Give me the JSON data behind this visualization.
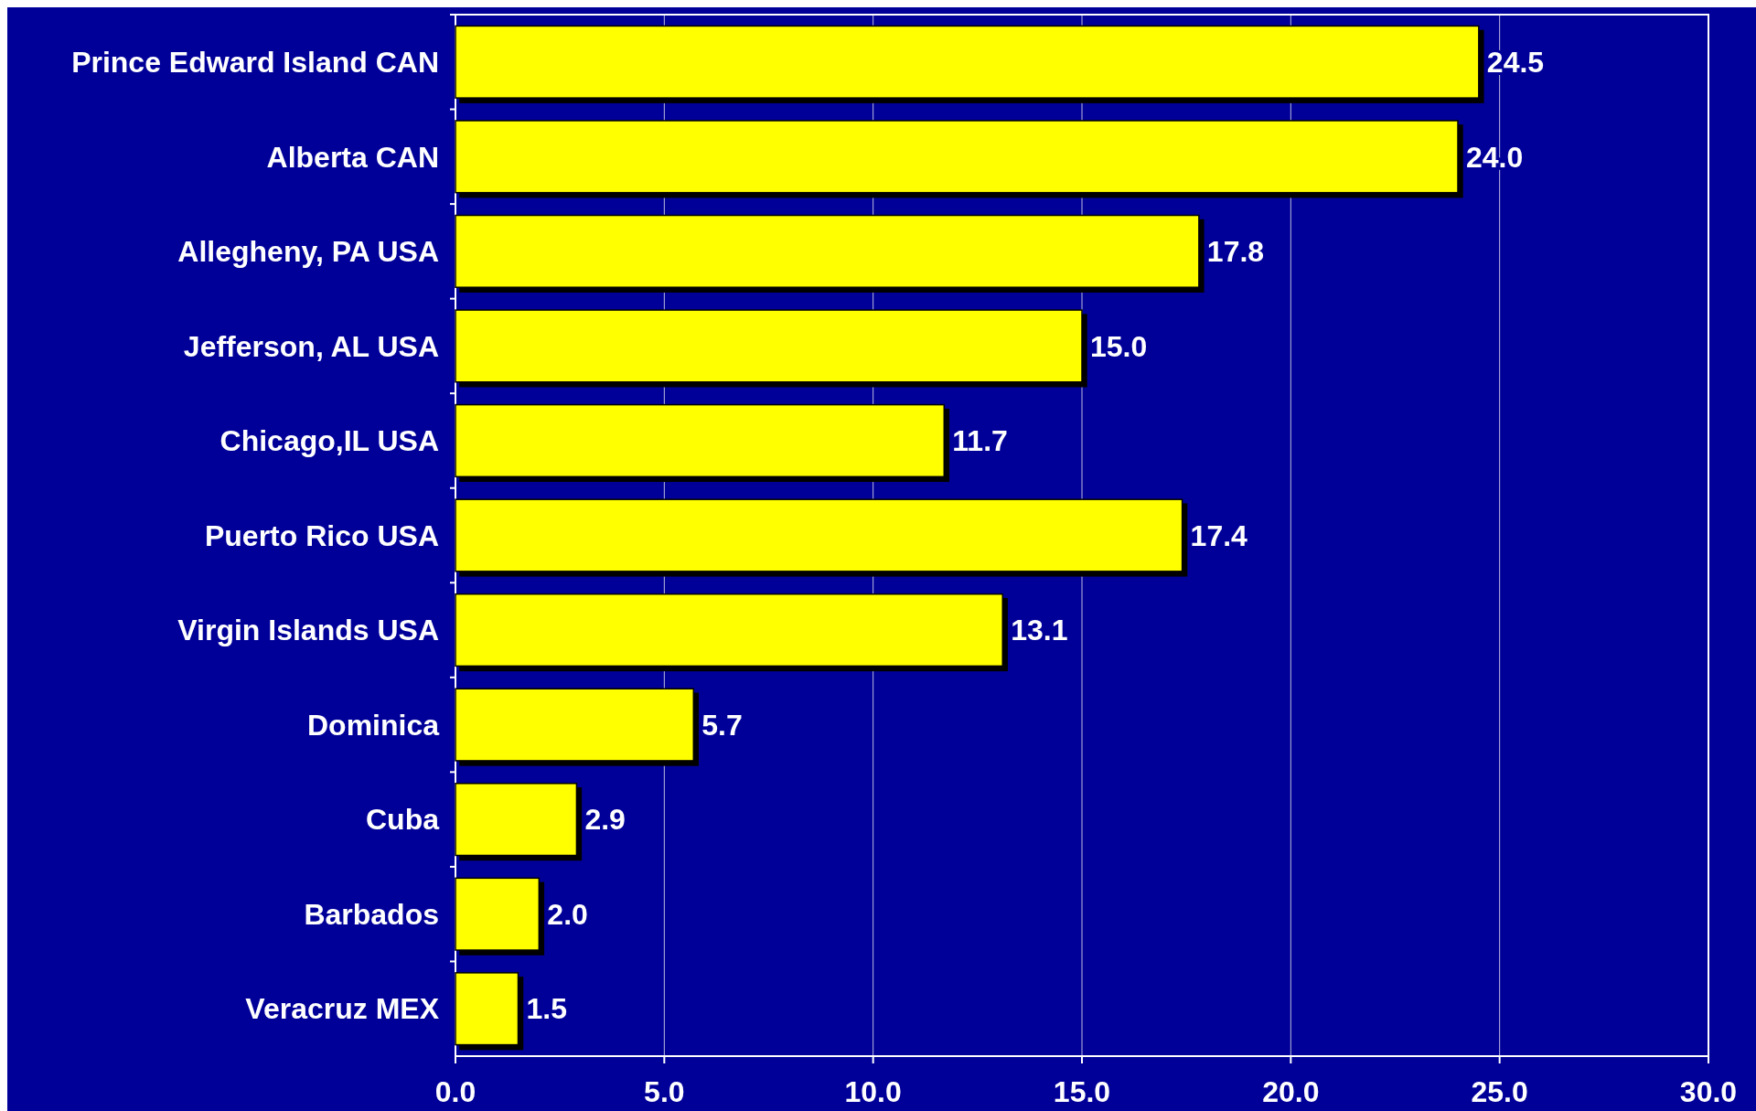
{
  "chart_data": {
    "type": "bar",
    "orientation": "horizontal",
    "categories": [
      "Prince Edward Island CAN",
      "Alberta CAN",
      "Allegheny, PA USA",
      "Jefferson, AL USA",
      "Chicago,IL USA",
      "Puerto Rico USA",
      "Virgin Islands USA",
      "Dominica",
      "Cuba",
      "Barbados",
      "Veracruz MEX"
    ],
    "values": [
      24.5,
      24.0,
      17.8,
      15.0,
      11.7,
      17.4,
      13.1,
      5.7,
      2.9,
      2.0,
      1.5
    ],
    "value_labels": [
      "24.5",
      "24.0",
      "17.8",
      "15.0",
      "11.7",
      "17.4",
      "13.1",
      "5.7",
      "2.9",
      "2.0",
      "1.5"
    ],
    "color": "#ffff00",
    "xlim": [
      0,
      30
    ],
    "xticks": [
      {
        "value": 0,
        "label": "0.0"
      },
      {
        "value": 5,
        "label": "5.0"
      },
      {
        "value": 10,
        "label": "10.0"
      },
      {
        "value": 15,
        "label": "15.0"
      },
      {
        "value": 20,
        "label": "20.0"
      },
      {
        "value": 25,
        "label": "25.0"
      },
      {
        "value": 30,
        "label": "30.0"
      }
    ],
    "grid": "x"
  }
}
